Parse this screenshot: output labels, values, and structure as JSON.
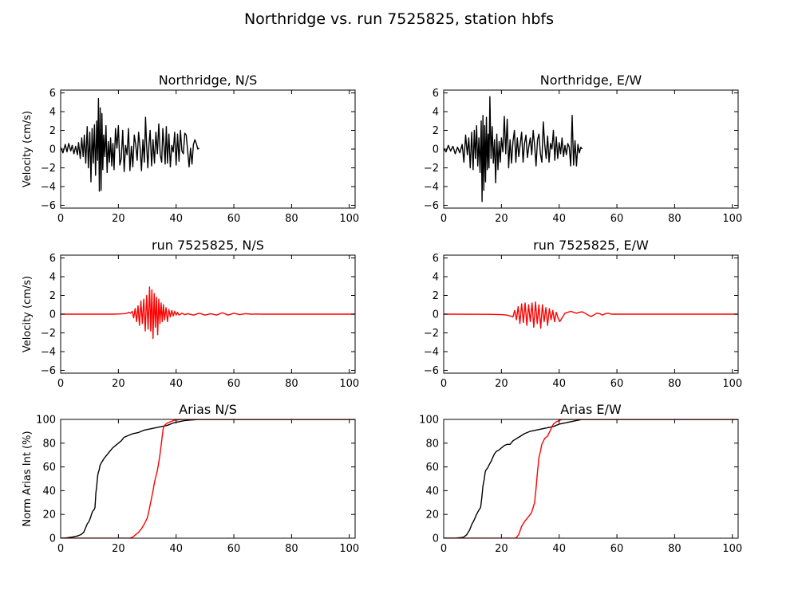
{
  "figure": {
    "title": "Northridge vs. run 7525825, station hbfs"
  },
  "colors": {
    "recorded": "#000000",
    "synthetic": "#ff0000"
  },
  "chart_data": [
    {
      "type": "line",
      "title": "Northridge, N/S",
      "ylabel": "Velocity (cm/s)",
      "xlim": [
        0,
        102
      ],
      "ylim": [
        -6.3,
        6.3
      ],
      "xticks": [
        "0",
        "20",
        "40",
        "60",
        "80",
        "100"
      ],
      "yticks": [
        "-6",
        "-4",
        "-2",
        "0",
        "2",
        "4",
        "6"
      ],
      "series": [
        {
          "color": "#000000",
          "x": [
            0,
            0.8,
            1.6,
            2.2,
            2.8,
            3.5,
            4.0,
            4.6,
            5.2,
            5.8,
            6.2,
            6.8,
            7.3,
            7.8,
            8.2,
            8.7,
            9.2,
            9.6,
            10.1,
            10.5,
            10.9,
            11.3,
            11.7,
            12.1,
            12.5,
            12.8,
            13.1,
            13.4,
            13.7,
            14.0,
            14.3,
            14.6,
            14.9,
            15.3,
            15.7,
            16.1,
            16.5,
            16.9,
            17.3,
            17.7,
            18.1,
            18.5,
            19.0,
            19.5,
            20.0,
            20.5,
            21.0,
            21.5,
            22.0,
            22.5,
            23.0,
            23.5,
            24.0,
            24.5,
            25.0,
            25.5,
            26.0,
            26.5,
            27.0,
            27.5,
            28.0,
            28.5,
            29.0,
            29.4,
            29.8,
            30.2,
            30.6,
            31.0,
            31.5,
            32.0,
            32.5,
            33.0,
            33.5,
            34.0,
            34.5,
            35.0,
            35.4,
            35.8,
            36.2,
            36.6,
            37.0,
            37.5,
            38.0,
            38.5,
            39.0,
            39.5,
            40.0,
            40.5,
            41.0,
            41.5,
            42.0,
            42.5,
            43.0,
            43.5,
            44.0,
            44.5,
            45.0,
            45.5,
            46.0,
            46.5,
            47.0,
            47.5,
            48.0
          ],
          "y": [
            0.2,
            -0.4,
            0.5,
            -0.3,
            0.6,
            -0.2,
            0.4,
            -0.5,
            0.3,
            -0.6,
            0.7,
            -1.0,
            1.2,
            -0.8,
            1.5,
            -1.5,
            2.4,
            -2.0,
            1.8,
            -3.5,
            2.2,
            -1.5,
            2.6,
            -2.8,
            3.0,
            -1.2,
            5.4,
            -4.5,
            4.4,
            -4.4,
            3.8,
            -2.2,
            1.5,
            -0.8,
            2.5,
            -2.5,
            0.8,
            -1.4,
            1.2,
            -1.8,
            0.6,
            -2.2,
            2.2,
            0.1,
            2.5,
            -1.7,
            -1.0,
            2.0,
            -2.4,
            0.4,
            -0.6,
            2.2,
            -2.3,
            0.3,
            -1.9,
            1.5,
            0.5,
            -1.2,
            1.8,
            0.2,
            -2.3,
            1.0,
            -1.4,
            3.4,
            0.3,
            -2.0,
            0.5,
            2.0,
            -1.8,
            1.0,
            -1.5,
            1.8,
            -0.5,
            2.7,
            -0.6,
            -1.4,
            2.2,
            0.4,
            -1.6,
            2.4,
            -1.5,
            1.6,
            -1.9,
            0.4,
            -0.3,
            1.8,
            -1.7,
            1.6,
            -1.3,
            2.0,
            -0.2,
            -0.5,
            1.7,
            1.5,
            -0.2,
            -1.9,
            0.1,
            -1.6,
            0.5,
            1.0,
            0.6,
            0.0,
            0.1
          ]
        }
      ]
    },
    {
      "type": "line",
      "title": "Northridge, E/W",
      "ylabel": "",
      "xlim": [
        0,
        102
      ],
      "ylim": [
        -6.3,
        6.3
      ],
      "xticks": [
        "0",
        "20",
        "40",
        "60",
        "80",
        "100"
      ],
      "yticks": [
        "-6",
        "-4",
        "-2",
        "0",
        "2",
        "4",
        "6"
      ],
      "series": [
        {
          "color": "#000000",
          "x": [
            0,
            0.8,
            1.6,
            2.4,
            3.2,
            4.0,
            4.8,
            5.6,
            6.4,
            7.0,
            7.6,
            8.2,
            8.7,
            9.2,
            9.7,
            10.2,
            10.6,
            11.0,
            11.4,
            11.8,
            12.2,
            12.6,
            13.0,
            13.3,
            13.6,
            13.9,
            14.2,
            14.5,
            14.8,
            15.1,
            15.4,
            15.7,
            16.0,
            16.4,
            16.8,
            17.2,
            17.6,
            18.0,
            18.4,
            18.8,
            19.2,
            19.6,
            20.0,
            20.5,
            21.0,
            21.5,
            22.0,
            22.5,
            23.0,
            23.5,
            24.0,
            24.5,
            25.0,
            25.5,
            26.0,
            26.5,
            27.0,
            27.5,
            28.0,
            28.5,
            29.0,
            29.5,
            30.0,
            30.5,
            31.0,
            31.5,
            32.0,
            32.5,
            33.0,
            33.5,
            34.0,
            34.5,
            35.0,
            35.5,
            36.0,
            36.5,
            37.0,
            37.5,
            38.0,
            38.5,
            39.0,
            39.5,
            40.0,
            40.5,
            41.0,
            41.5,
            42.0,
            42.5,
            43.0,
            43.5,
            44.0,
            44.5,
            45.0,
            45.5,
            46.0,
            46.5,
            47.0,
            47.5,
            48.0
          ],
          "y": [
            0.1,
            -0.3,
            0.4,
            -0.2,
            0.3,
            -0.5,
            0.2,
            -0.4,
            0.5,
            -1.4,
            1.5,
            -0.6,
            1.2,
            -2.0,
            1.8,
            -2.2,
            2.0,
            -1.0,
            2.5,
            -1.8,
            1.2,
            -2.5,
            3.0,
            -5.6,
            3.6,
            -4.4,
            2.5,
            -3.5,
            3.4,
            -2.2,
            1.6,
            -2.0,
            5.6,
            -1.0,
            2.4,
            -1.5,
            1.0,
            -3.6,
            1.6,
            -2.2,
            0.8,
            -1.4,
            1.2,
            -0.3,
            3.5,
            -0.5,
            3.2,
            -2.0,
            1.0,
            -1.5,
            0.8,
            2.0,
            -1.4,
            1.2,
            -0.8,
            0.5,
            1.8,
            -1.4,
            0.6,
            1.5,
            -0.9,
            0.3,
            1.2,
            -0.6,
            2.0,
            0.4,
            -1.8,
            1.0,
            1.6,
            -0.5,
            -1.4,
            2.9,
            0.5,
            -1.0,
            1.4,
            -1.4,
            0.6,
            0.0,
            2.0,
            -1.2,
            1.3,
            -1.0,
            0.7,
            -0.5,
            1.2,
            -0.8,
            0.4,
            -0.6,
            0.6,
            0.2,
            -1.8,
            3.6,
            -1.7,
            0.9,
            -1.8,
            0.5,
            -0.4,
            0.2,
            0.0
          ]
        }
      ]
    },
    {
      "type": "line",
      "title": "run 7525825, N/S",
      "ylabel": "Velocity (cm/s)",
      "xlim": [
        0,
        102
      ],
      "ylim": [
        -6.3,
        6.3
      ],
      "xticks": [
        "0",
        "20",
        "40",
        "60",
        "80",
        "100"
      ],
      "yticks": [
        "-6",
        "-4",
        "-2",
        "0",
        "2",
        "4",
        "6"
      ],
      "series": [
        {
          "color": "#ff0000",
          "x": [
            0,
            18,
            20,
            22,
            23.0,
            23.6,
            24.2,
            24.8,
            25.3,
            25.8,
            26.3,
            26.8,
            27.3,
            27.8,
            28.3,
            28.8,
            29.3,
            29.8,
            30.3,
            30.8,
            31.2,
            31.6,
            32.0,
            32.4,
            32.8,
            33.2,
            33.6,
            34.0,
            34.4,
            34.8,
            35.2,
            35.6,
            36.0,
            36.5,
            37.0,
            37.5,
            38.0,
            38.5,
            39.0,
            39.5,
            40.0,
            40.5,
            41.0,
            42.0,
            43.0,
            44.0,
            46.0,
            48.0,
            50.0,
            52.0,
            54.0,
            56.0,
            58.0,
            60.0,
            62.0,
            64.0,
            66.0,
            68.0,
            70.0,
            75.0,
            80.0,
            90.0,
            102.0
          ],
          "y": [
            0,
            0,
            0.02,
            0.05,
            0.1,
            0.2,
            0.1,
            0.3,
            -0.4,
            0.6,
            -0.8,
            0.9,
            -1.2,
            1.4,
            -1.0,
            1.6,
            -1.8,
            2.0,
            -1.6,
            2.9,
            -1.8,
            2.6,
            -2.6,
            2.2,
            -1.4,
            1.8,
            -2.2,
            1.6,
            -1.0,
            1.2,
            -0.8,
            1.0,
            -0.6,
            0.7,
            -0.8,
            0.5,
            -0.3,
            0.4,
            -0.2,
            0.3,
            -0.1,
            0.2,
            -0.1,
            0.1,
            -0.05,
            0.05,
            -0.1,
            0.1,
            -0.1,
            0.05,
            -0.1,
            0.15,
            -0.1,
            0.1,
            -0.05,
            0.05,
            0.0,
            0.02,
            0.0,
            0.0,
            0.0,
            0.0,
            0.0
          ]
        }
      ]
    },
    {
      "type": "line",
      "title": "run 7525825, E/W",
      "ylabel": "",
      "xlim": [
        0,
        102
      ],
      "ylim": [
        -6.3,
        6.3
      ],
      "xticks": [
        "0",
        "20",
        "40",
        "60",
        "80",
        "100"
      ],
      "yticks": [
        "-6",
        "-4",
        "-2",
        "0",
        "2",
        "4",
        "6"
      ],
      "series": [
        {
          "color": "#ff0000",
          "x": [
            0,
            15,
            20,
            22.0,
            23.0,
            24.0,
            24.6,
            25.2,
            25.8,
            26.4,
            27.0,
            27.6,
            28.2,
            28.8,
            29.4,
            30.0,
            30.6,
            31.2,
            31.8,
            32.4,
            33.0,
            33.6,
            34.2,
            34.8,
            35.4,
            36.0,
            36.6,
            37.2,
            37.8,
            38.4,
            39.0,
            39.6,
            40.2,
            41.0,
            42.0,
            43.0,
            44.0,
            45.0,
            46.0,
            47.0,
            48.0,
            49.0,
            50.0,
            51.0,
            52.0,
            53.0,
            54.0,
            55.0,
            56.0,
            57.0,
            58.0,
            60.0,
            62.0,
            65.0,
            70.0,
            80.0,
            90.0,
            102.0
          ],
          "y": [
            0,
            -0.02,
            -0.05,
            -0.1,
            -0.2,
            -0.3,
            0.4,
            -0.6,
            0.8,
            -1.0,
            1.1,
            -0.9,
            1.2,
            -1.2,
            1.0,
            -0.8,
            1.2,
            -1.4,
            1.3,
            -1.0,
            1.0,
            -1.5,
            1.0,
            -0.8,
            0.7,
            -1.2,
            0.6,
            -0.6,
            0.4,
            -0.8,
            0.2,
            -0.4,
            -0.8,
            -0.4,
            0.1,
            0.2,
            0.3,
            0.2,
            0.1,
            0.2,
            0.25,
            0.1,
            -0.1,
            -0.25,
            -0.1,
            0.1,
            0.05,
            -0.1,
            0.05,
            0.1,
            0.0,
            0.0,
            0.0,
            0.0,
            0.0,
            0.0,
            0.0,
            0.0
          ]
        }
      ]
    },
    {
      "type": "line",
      "title": "Arias N/S",
      "ylabel": "Norm Arias Int (%)",
      "xlim": [
        0,
        102
      ],
      "ylim": [
        0,
        100
      ],
      "xticks": [
        "0",
        "20",
        "40",
        "60",
        "80",
        "100"
      ],
      "yticks": [
        "0",
        "20",
        "40",
        "60",
        "80",
        "100"
      ],
      "series": [
        {
          "color": "#000000",
          "x": [
            0,
            2,
            4,
            6,
            7,
            8,
            8.7,
            9.2,
            9.8,
            10.3,
            10.8,
            11.2,
            11.6,
            11.9,
            12.2,
            12.5,
            12.8,
            13.0,
            13.3,
            13.6,
            14.0,
            14.5,
            15.0,
            16.0,
            17.0,
            18.0,
            19.0,
            20.0,
            21.0,
            22.0,
            23.0,
            25.0,
            27.0,
            29.0,
            31.0,
            33.0,
            35.0,
            37.0,
            39.0,
            41.0,
            43.0,
            45.0,
            48.0,
            102.0
          ],
          "y": [
            0,
            0.3,
            1,
            2,
            3,
            5,
            9,
            12,
            14,
            17,
            21,
            23,
            24,
            26,
            38,
            44,
            52,
            55,
            57,
            61,
            63,
            65,
            67,
            70,
            73,
            76,
            78,
            80,
            82,
            85,
            86,
            88,
            89,
            91,
            92,
            93,
            94,
            95,
            97,
            98,
            99,
            99.5,
            100,
            100
          ]
        },
        {
          "color": "#ff0000",
          "x": [
            0,
            20,
            24,
            25,
            26,
            27,
            28,
            29,
            30,
            30.5,
            31.0,
            31.5,
            32.0,
            32.5,
            33.0,
            33.5,
            34.0,
            34.5,
            35.0,
            35.5,
            36.0,
            37.0,
            38.0,
            39.0,
            40.0,
            42.0,
            45.0,
            102.0
          ],
          "y": [
            0,
            0,
            0,
            1,
            3,
            5,
            8,
            12,
            17,
            22,
            28,
            34,
            40,
            47,
            52,
            57,
            64,
            72,
            82,
            92,
            95,
            97,
            98,
            99,
            99.5,
            100,
            100,
            100
          ]
        }
      ]
    },
    {
      "type": "line",
      "title": "Arias E/W",
      "ylabel": "",
      "xlim": [
        0,
        102
      ],
      "ylim": [
        0,
        100
      ],
      "xticks": [
        "0",
        "20",
        "40",
        "60",
        "80",
        "100"
      ],
      "yticks": [
        "0",
        "20",
        "40",
        "60",
        "80",
        "100"
      ],
      "series": [
        {
          "color": "#000000",
          "x": [
            0,
            4,
            6,
            7,
            8,
            9,
            9.8,
            10.5,
            11.2,
            11.8,
            12.3,
            12.8,
            13.2,
            13.6,
            14.0,
            14.4,
            14.8,
            15.2,
            15.8,
            16.5,
            17.0,
            17.6,
            18.2,
            19.0,
            20.0,
            21.0,
            22.0,
            23.0,
            24.0,
            26.0,
            28.0,
            30.0,
            32.0,
            34.0,
            36.0,
            38.0,
            40.0,
            42.0,
            44.0,
            46.0,
            48.0,
            102.0
          ],
          "y": [
            0,
            0,
            0.5,
            1,
            3,
            7,
            12,
            15,
            19,
            22,
            24,
            26,
            34,
            44,
            49,
            56,
            58,
            59,
            62,
            65,
            68,
            71,
            73,
            74,
            76,
            78,
            79,
            79,
            82,
            85,
            88,
            90,
            91,
            92,
            93,
            94,
            96,
            97,
            98,
            99,
            100,
            100
          ]
        },
        {
          "color": "#ff0000",
          "x": [
            0,
            22,
            25,
            26,
            27,
            28,
            29,
            30,
            30.5,
            31.0,
            31.5,
            32.0,
            32.5,
            33.0,
            33.5,
            34.0,
            35.0,
            36.0,
            37.0,
            37.5,
            38.0,
            38.5,
            39.0,
            40.0,
            41.0,
            45.0,
            102.0
          ],
          "y": [
            0,
            0,
            0,
            3,
            10,
            14,
            17,
            20,
            22,
            26,
            30,
            42,
            56,
            68,
            73,
            79,
            84,
            86,
            91,
            94,
            96,
            97,
            98,
            99,
            100,
            100,
            100
          ]
        }
      ]
    }
  ]
}
